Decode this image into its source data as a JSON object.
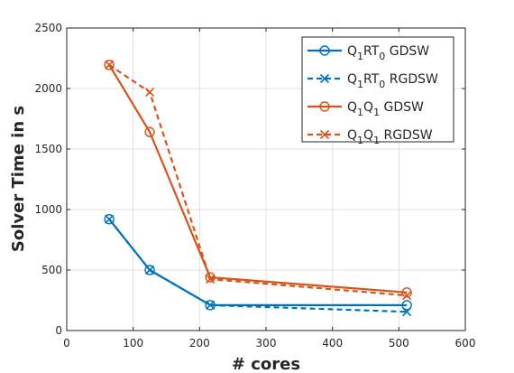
{
  "chart_data": {
    "type": "line",
    "xlabel": "# cores",
    "ylabel": "Solver Time in s",
    "xlim": [
      0,
      600
    ],
    "ylim": [
      0,
      2500
    ],
    "xticks": [
      0,
      100,
      200,
      300,
      400,
      500,
      600
    ],
    "yticks": [
      0,
      500,
      1000,
      1500,
      2000,
      2500
    ],
    "grid": true,
    "legend_position": "top-right",
    "series": [
      {
        "name": "Q1RT0 GDSW",
        "legend": {
          "a": "Q",
          "a_sub": "1",
          "b": "RT",
          "b_sub": "0",
          "rest": "GDSW"
        },
        "color": "#0072BD",
        "style": "solid",
        "marker": "circle",
        "x": [
          64,
          125,
          216,
          512
        ],
        "y": [
          920,
          500,
          210,
          210
        ]
      },
      {
        "name": "Q1RT0 RGDSW",
        "legend": {
          "a": "Q",
          "a_sub": "1",
          "b": "RT",
          "b_sub": "0",
          "rest": "RGDSW"
        },
        "color": "#0072BD",
        "style": "dashed",
        "marker": "x",
        "x": [
          64,
          125,
          216,
          512
        ],
        "y": [
          920,
          500,
          210,
          155
        ]
      },
      {
        "name": "Q1Q1 GDSW",
        "legend": {
          "a": "Q",
          "a_sub": "1",
          "b": "Q",
          "b_sub": "1",
          "rest": "GDSW"
        },
        "color": "#D95319",
        "style": "solid",
        "marker": "circle",
        "x": [
          64,
          125,
          216,
          512
        ],
        "y": [
          2195,
          1640,
          440,
          315
        ]
      },
      {
        "name": "Q1Q1 RGDSW",
        "legend": {
          "a": "Q",
          "a_sub": "1",
          "b": "Q",
          "b_sub": "1",
          "rest": "RGDSW"
        },
        "color": "#D95319",
        "style": "dashed",
        "marker": "x",
        "x": [
          64,
          125,
          216,
          512
        ],
        "y": [
          2195,
          1970,
          425,
          290
        ]
      }
    ]
  }
}
